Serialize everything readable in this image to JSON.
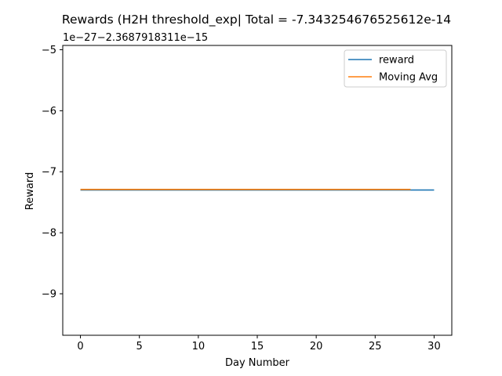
{
  "chart_data": {
    "type": "line",
    "title": "Rewards (H2H threshold_exp| Total = -7.343254676525612e-14",
    "xlabel": "Day Number",
    "ylabel": "Reward",
    "offset_label": "1e−27−2.3687918311e−15",
    "xlim": [
      -1.5,
      31.5
    ],
    "ylim": [
      -9.68,
      -4.93
    ],
    "xticks": [
      0,
      5,
      10,
      15,
      20,
      25,
      30
    ],
    "yticks": [
      -9,
      -8,
      -7,
      -6,
      -5
    ],
    "ytick_labels": [
      "−9",
      "−8",
      "−7",
      "−6",
      "−5"
    ],
    "grid": false,
    "legend_position": "upper right",
    "series": [
      {
        "name": "reward",
        "color": "#1f77b4",
        "x": [
          0,
          1,
          2,
          3,
          4,
          5,
          6,
          7,
          8,
          9,
          10,
          11,
          12,
          13,
          14,
          15,
          16,
          17,
          18,
          19,
          20,
          21,
          22,
          23,
          24,
          25,
          26,
          27,
          28,
          29,
          30
        ],
        "y": [
          -7.3,
          -7.3,
          -7.3,
          -7.3,
          -7.3,
          -7.3,
          -7.3,
          -7.3,
          -7.3,
          -7.3,
          -7.3,
          -7.3,
          -7.3,
          -7.3,
          -7.3,
          -7.3,
          -7.3,
          -7.3,
          -7.3,
          -7.3,
          -7.3,
          -7.3,
          -7.3,
          -7.3,
          -7.3,
          -7.3,
          -7.3,
          -7.3,
          -7.3,
          -7.3,
          -7.3
        ]
      },
      {
        "name": "Moving Avg",
        "color": "#ff7f0e",
        "x": [
          0,
          1,
          2,
          3,
          4,
          5,
          6,
          7,
          8,
          9,
          10,
          11,
          12,
          13,
          14,
          15,
          16,
          17,
          18,
          19,
          20,
          21,
          22,
          23,
          24,
          25,
          26,
          27,
          28
        ],
        "y": [
          -7.29,
          -7.29,
          -7.29,
          -7.29,
          -7.29,
          -7.29,
          -7.29,
          -7.29,
          -7.29,
          -7.29,
          -7.29,
          -7.29,
          -7.29,
          -7.29,
          -7.29,
          -7.29,
          -7.29,
          -7.29,
          -7.29,
          -7.29,
          -7.29,
          -7.29,
          -7.29,
          -7.29,
          -7.29,
          -7.29,
          -7.29,
          -7.29,
          -7.29
        ]
      }
    ]
  }
}
